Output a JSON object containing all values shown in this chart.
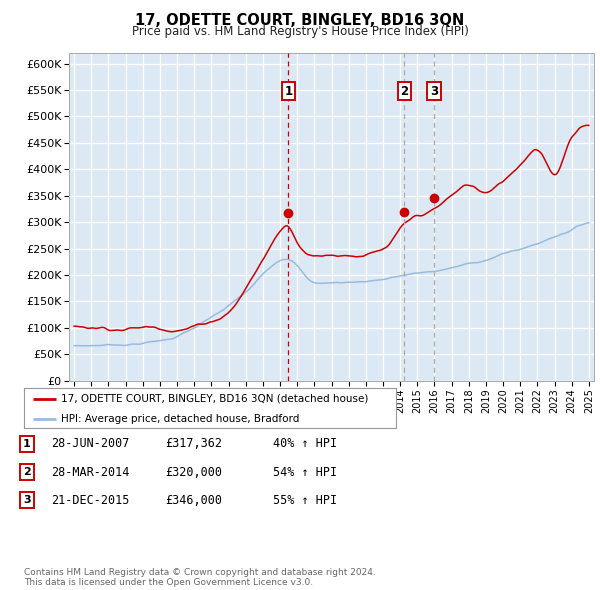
{
  "title": "17, ODETTE COURT, BINGLEY, BD16 3QN",
  "subtitle": "Price paid vs. HM Land Registry's House Price Index (HPI)",
  "plot_bg_color": "#dce9f5",
  "grid_color": "#c8d8e8",
  "ylim": [
    0,
    620000
  ],
  "yticks": [
    0,
    50000,
    100000,
    150000,
    200000,
    250000,
    300000,
    350000,
    400000,
    450000,
    500000,
    550000,
    600000
  ],
  "ytick_labels": [
    "£0",
    "£50K",
    "£100K",
    "£150K",
    "£200K",
    "£250K",
    "£300K",
    "£350K",
    "£400K",
    "£450K",
    "£500K",
    "£550K",
    "£600K"
  ],
  "xlim_start": 1994.7,
  "xlim_end": 2025.3,
  "sale_dates": [
    2007.49,
    2014.24,
    2015.98
  ],
  "sale_prices": [
    317362,
    320000,
    346000
  ],
  "sale_labels": [
    "1",
    "2",
    "3"
  ],
  "sale_marker_y": 548000,
  "legend_line1": "17, ODETTE COURT, BINGLEY, BD16 3QN (detached house)",
  "legend_line2": "HPI: Average price, detached house, Bradford",
  "red_color": "#cc0000",
  "blue_color": "#99bbdd",
  "sale1_dash_color": "#cc0000",
  "sale23_dash_color": "#aaaaaa",
  "footer": "Contains HM Land Registry data © Crown copyright and database right 2024.\nThis data is licensed under the Open Government Licence v3.0.",
  "transactions": [
    {
      "num": "1",
      "date": "28-JUN-2007",
      "price": "£317,362",
      "hpi": "40% ↑ HPI"
    },
    {
      "num": "2",
      "date": "28-MAR-2014",
      "price": "£320,000",
      "hpi": "54% ↑ HPI"
    },
    {
      "num": "3",
      "date": "21-DEC-2015",
      "price": "£346,000",
      "hpi": "55% ↑ HPI"
    }
  ]
}
